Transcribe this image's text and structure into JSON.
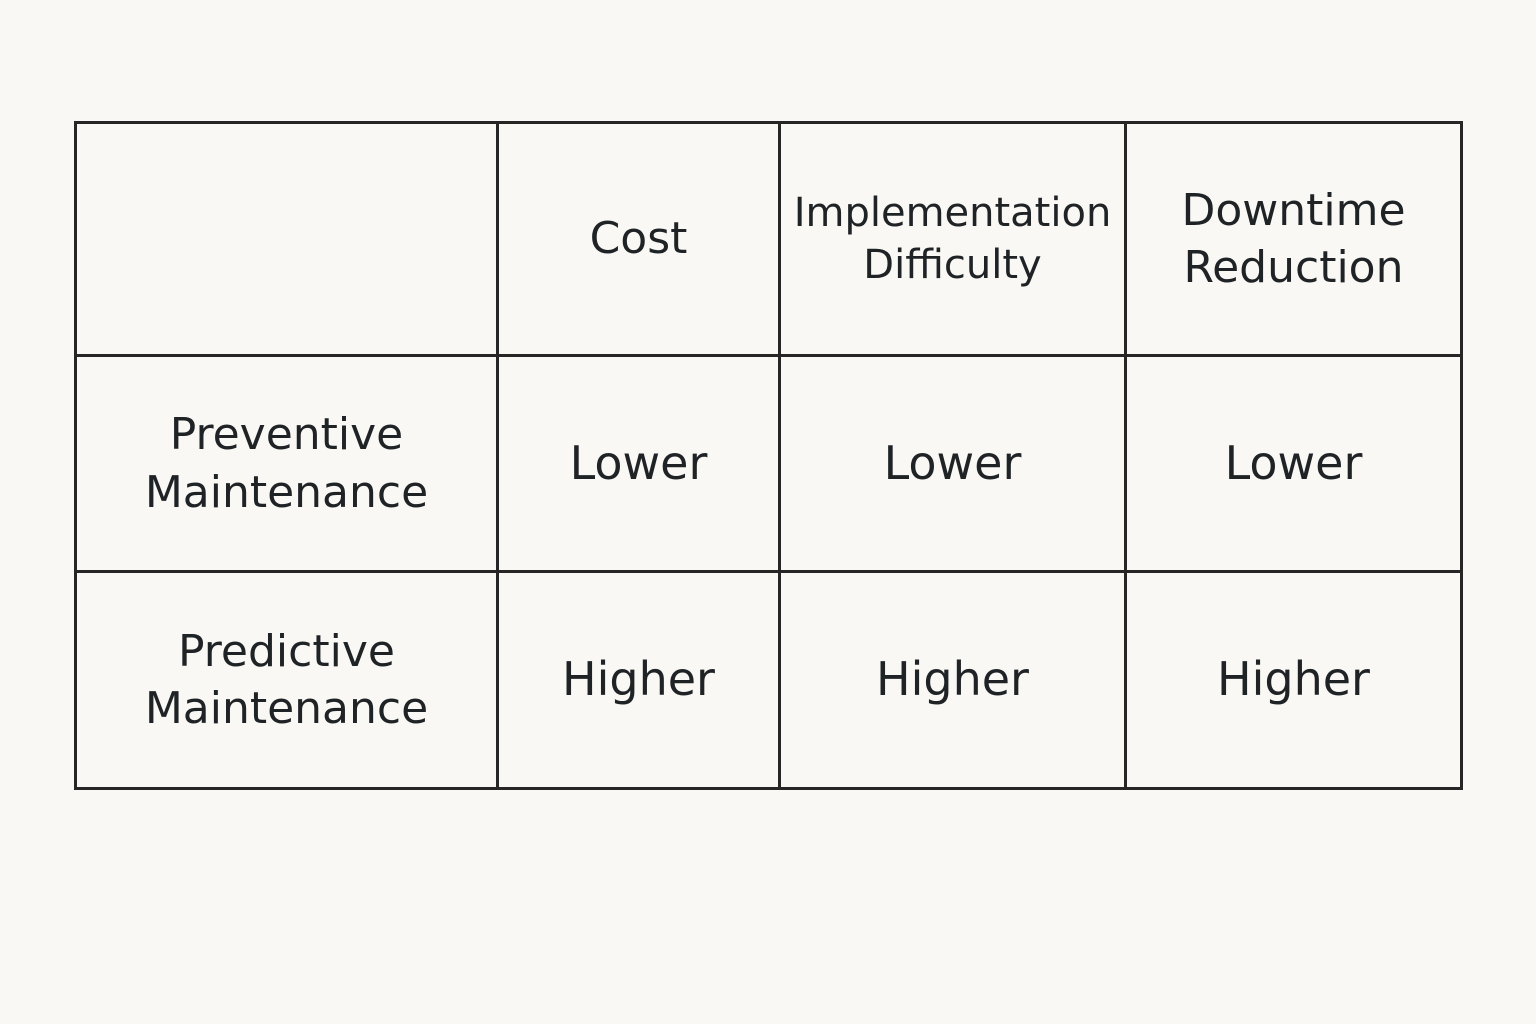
{
  "table": {
    "header": [
      "Cost",
      "Implementation Difficulty",
      "Downtime Reduction"
    ],
    "rows": [
      {
        "label": "Preventive Maintenance",
        "cells": [
          "Lower",
          "Lower",
          "Lower"
        ]
      },
      {
        "label": "Predictive Maintenance",
        "cells": [
          "Higher",
          "Higher",
          "Higher"
        ]
      }
    ]
  }
}
